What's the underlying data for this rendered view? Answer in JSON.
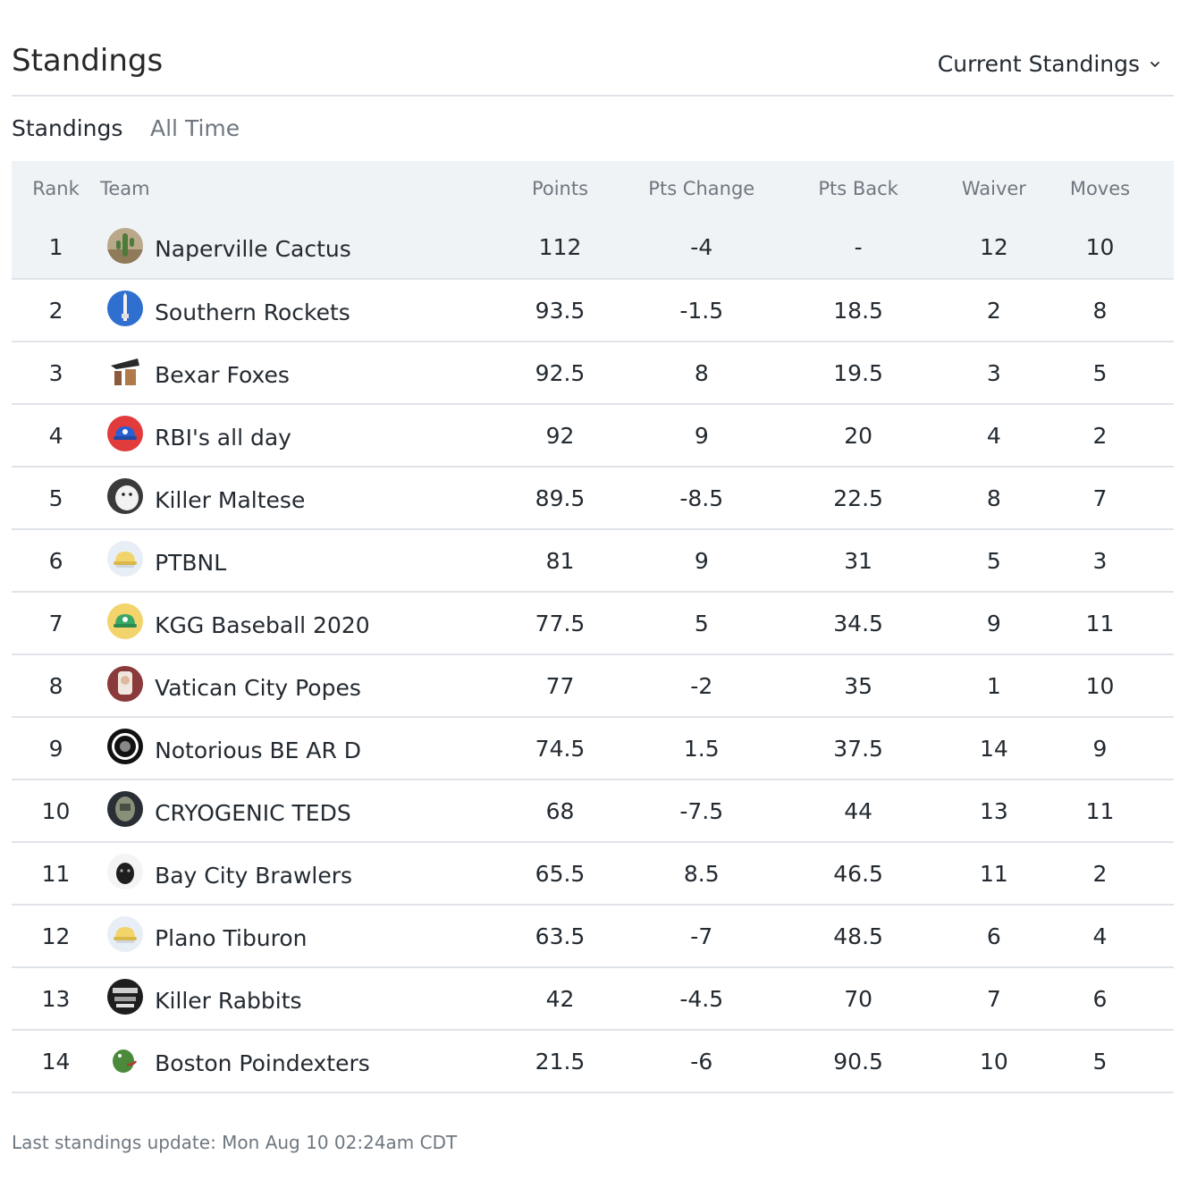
{
  "header": {
    "title": "Standings",
    "view_select": "Current Standings"
  },
  "tabs": [
    {
      "label": "Standings",
      "active": true
    },
    {
      "label": "All Time",
      "active": false
    }
  ],
  "table": {
    "columns": [
      "Rank",
      "Team",
      "Points",
      "Pts Change",
      "Pts Back",
      "Waiver",
      "Moves"
    ],
    "rows": [
      {
        "rank": "1",
        "team": "Naperville Cactus",
        "points": "112",
        "change": "-4",
        "back": "-",
        "waiver": "12",
        "moves": "10",
        "icon": "cactus-icon"
      },
      {
        "rank": "2",
        "team": "Southern Rockets",
        "points": "93.5",
        "change": "-1.5",
        "back": "18.5",
        "waiver": "2",
        "moves": "8",
        "icon": "rocket-icon"
      },
      {
        "rank": "3",
        "team": "Bexar Foxes",
        "points": "92.5",
        "change": "8",
        "back": "19.5",
        "waiver": "3",
        "moves": "5",
        "icon": "fox-icon"
      },
      {
        "rank": "4",
        "team": "RBI's all day",
        "points": "92",
        "change": "9",
        "back": "20",
        "waiver": "4",
        "moves": "2",
        "icon": "red-cap-icon"
      },
      {
        "rank": "5",
        "team": "Killer Maltese",
        "points": "89.5",
        "change": "-8.5",
        "back": "22.5",
        "waiver": "8",
        "moves": "7",
        "icon": "dog-icon"
      },
      {
        "rank": "6",
        "team": "PTBNL",
        "points": "81",
        "change": "9",
        "back": "31",
        "waiver": "5",
        "moves": "3",
        "icon": "yellow-cap-icon"
      },
      {
        "rank": "7",
        "team": "KGG Baseball 2020",
        "points": "77.5",
        "change": "5",
        "back": "34.5",
        "waiver": "9",
        "moves": "11",
        "icon": "green-cap-icon"
      },
      {
        "rank": "8",
        "team": "Vatican City Popes",
        "points": "77",
        "change": "-2",
        "back": "35",
        "waiver": "1",
        "moves": "10",
        "icon": "pope-icon"
      },
      {
        "rank": "9",
        "team": "Notorious BE AR D",
        "points": "74.5",
        "change": "1.5",
        "back": "37.5",
        "waiver": "14",
        "moves": "9",
        "icon": "badge-icon"
      },
      {
        "rank": "10",
        "team": "CRYOGENIC TEDS",
        "points": "68",
        "change": "-7.5",
        "back": "44",
        "waiver": "13",
        "moves": "11",
        "icon": "helmet-icon"
      },
      {
        "rank": "11",
        "team": "Bay City Brawlers",
        "points": "65.5",
        "change": "8.5",
        "back": "46.5",
        "waiver": "11",
        "moves": "2",
        "icon": "puppy-icon"
      },
      {
        "rank": "12",
        "team": "Plano Tiburon",
        "points": "63.5",
        "change": "-7",
        "back": "48.5",
        "waiver": "6",
        "moves": "4",
        "icon": "yellow-cap-icon"
      },
      {
        "rank": "13",
        "team": "Killer Rabbits",
        "points": "42",
        "change": "-4.5",
        "back": "70",
        "waiver": "7",
        "moves": "6",
        "icon": "rabbit-icon"
      },
      {
        "rank": "14",
        "team": "Boston Poindexters",
        "points": "21.5",
        "change": "-6",
        "back": "90.5",
        "waiver": "10",
        "moves": "5",
        "icon": "dinosaur-icon"
      }
    ]
  },
  "footer": {
    "note": "Last standings update: Mon Aug 10 02:24am CDT"
  },
  "colors": {
    "negative": "#d32f2f",
    "positive": "#3aa765",
    "header_bg": "#f0f3f5",
    "border": "#e0e4e9"
  }
}
